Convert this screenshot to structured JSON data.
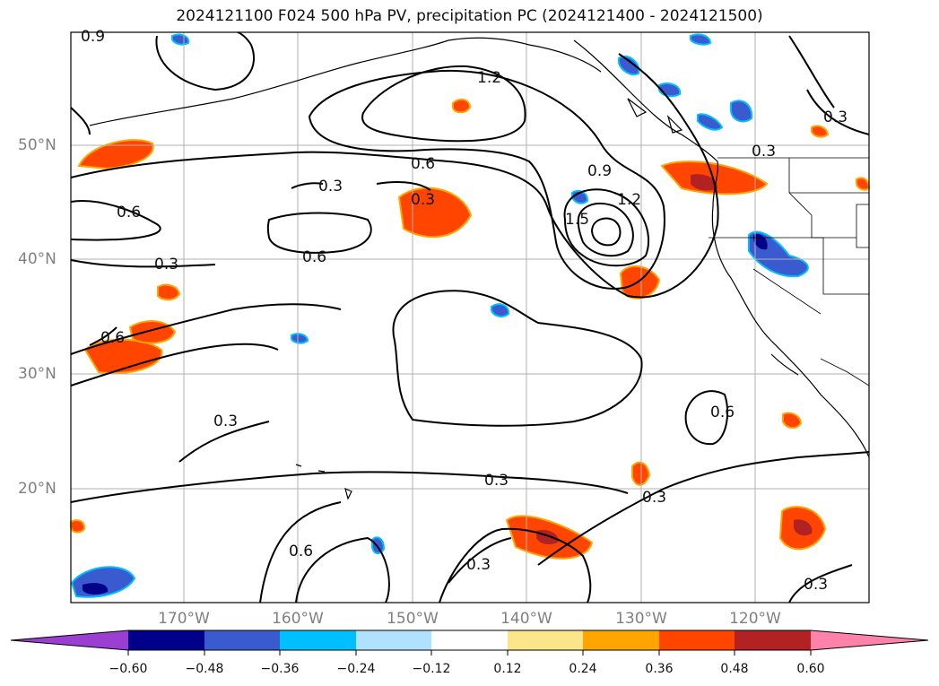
{
  "title": "2024121100 F024 500 hPa PV, precipitation PC (2024121400 - 2024121500)",
  "latitude_labels": [
    "50°N",
    "40°N",
    "30°N",
    "20°N"
  ],
  "longitude_labels": [
    "170°W",
    "160°W",
    "150°W",
    "140°W",
    "130°W",
    "120°W"
  ],
  "colorbar": {
    "ticks": [
      "−0.60",
      "−0.48",
      "−0.36",
      "−0.24",
      "−0.12",
      "0.12",
      "0.24",
      "0.36",
      "0.48",
      "0.60"
    ],
    "colors": {
      "under": "#9a3fd1",
      "c1": "#00008b",
      "c2": "#3a5bd0",
      "c3": "#00bfff",
      "c4": "#b0e2ff",
      "c5": "#ffffff",
      "c6": "#fbe58a",
      "c7": "#ffa500",
      "c8": "#ff4500",
      "c9": "#b22222",
      "over": "#ff82ab"
    }
  },
  "contour_labels": [
    "0.9",
    "1.2",
    "0.3",
    "0.3",
    "0.6",
    "0.3",
    "0.9",
    "1.2",
    "1.5",
    "0.6",
    "0.6",
    "0.3",
    "0.6",
    "0.3",
    "0.3",
    "0.3",
    "0.6",
    "0.3",
    "0.6",
    "0.3",
    "0.3"
  ]
}
